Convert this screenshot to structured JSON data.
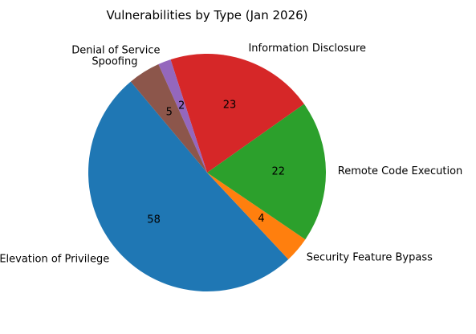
{
  "chart_data": {
    "type": "pie",
    "title": "Vulnerabilities by Type (Jan 2026)",
    "slices": [
      {
        "label": "Elevation of Privilege",
        "value": 58,
        "color": "#1f77b4"
      },
      {
        "label": "Security Feature Bypass",
        "value": 4,
        "color": "#ff7f0e"
      },
      {
        "label": "Remote Code Execution",
        "value": 22,
        "color": "#2ca02c"
      },
      {
        "label": "Information Disclosure",
        "value": 23,
        "color": "#d62728"
      },
      {
        "label": "Denial of Service",
        "value": 2,
        "color": "#9467bd"
      },
      {
        "label": "Spoofing",
        "value": 5,
        "color": "#8c564b"
      }
    ],
    "start_angle_deg": 130,
    "direction": "counterclockwise",
    "legend": "none"
  }
}
